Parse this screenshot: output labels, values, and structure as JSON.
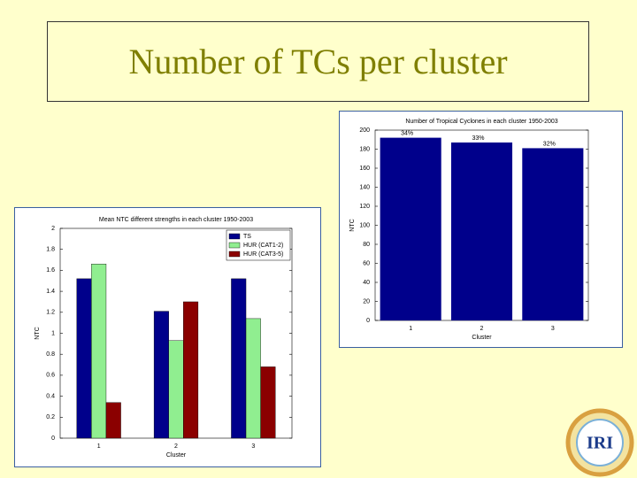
{
  "slide_title": "Number of TCs per cluster",
  "logo": "IRI",
  "chart_data": [
    {
      "type": "grouped-bar",
      "title": "Mean NTC different strengths in each cluster 1950-2003",
      "categories": [
        "1",
        "2",
        "3"
      ],
      "x_label": "Cluster",
      "y_label": "NTC",
      "series": [
        {
          "name": "TS",
          "color": "#00008b",
          "values": [
            1.52,
            1.21,
            1.52
          ]
        },
        {
          "name": "HUR (CAT1-2)",
          "color": "#90ee90",
          "values": [
            1.66,
            0.93,
            1.14
          ]
        },
        {
          "name": "HUR (CAT3-5)",
          "color": "#8b0000",
          "values": [
            0.34,
            1.3,
            0.68
          ]
        }
      ],
      "ylim": [
        0,
        2
      ],
      "yticks": [
        0,
        0.2,
        0.4,
        0.6,
        0.8,
        1,
        1.2,
        1.4,
        1.6,
        1.8,
        2
      ],
      "legend": "top-right"
    },
    {
      "type": "bar",
      "title": "Number of Tropical Cyclones in each cluster 1950-2003",
      "categories": [
        "1",
        "2",
        "3"
      ],
      "x_label": "Cluster",
      "y_label": "NTC",
      "values": [
        192,
        187,
        181
      ],
      "color": "#00008b",
      "annotations": [
        "34%",
        "33%",
        "32%"
      ],
      "ylim": [
        0,
        200
      ],
      "yticks": [
        0,
        20,
        40,
        60,
        80,
        100,
        120,
        140,
        160,
        180,
        200
      ]
    }
  ]
}
